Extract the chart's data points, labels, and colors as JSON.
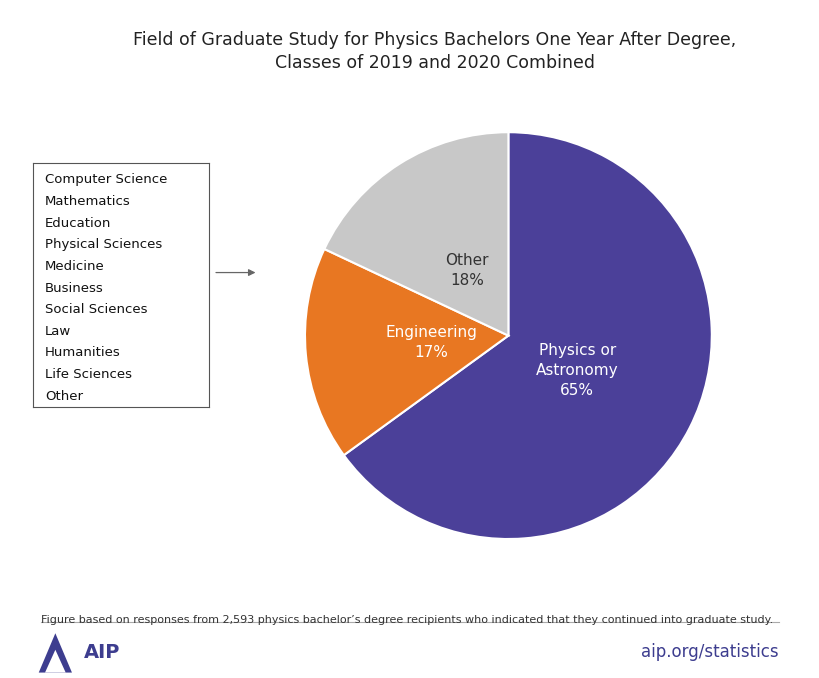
{
  "title": "Field of Graduate Study for Physics Bachelors One Year After Degree,\nClasses of 2019 and 2020 Combined",
  "slices": [
    {
      "label": "Physics or\nAstronomy\n65%",
      "value": 65,
      "color": "#4b4099",
      "text_color": "white"
    },
    {
      "label": "Engineering\n17%",
      "value": 17,
      "color": "#e87722",
      "text_color": "white"
    },
    {
      "label": "Other\n18%",
      "value": 18,
      "color": "#c8c8c8",
      "text_color": "#333333"
    }
  ],
  "legend_items": [
    "Computer Science",
    "Mathematics",
    "Education",
    "Physical Sciences",
    "Medicine",
    "Business",
    "Social Sciences",
    "Law",
    "Humanities",
    "Life Sciences",
    "Other"
  ],
  "footnote": "Figure based on responses from 2,593 physics bachelor’s degree recipients who indicated that they continued into graduate study.",
  "aip_text": "AIP",
  "website_text": "aip.org/statistics",
  "background_color": "#ffffff",
  "title_fontsize": 12.5,
  "slice_fontsize": 11,
  "legend_fontsize": 9.5,
  "footnote_fontsize": 8.0,
  "website_fontsize": 12,
  "start_angle": 90,
  "aip_color": "#3d3d8f",
  "website_color": "#3d3d8f"
}
